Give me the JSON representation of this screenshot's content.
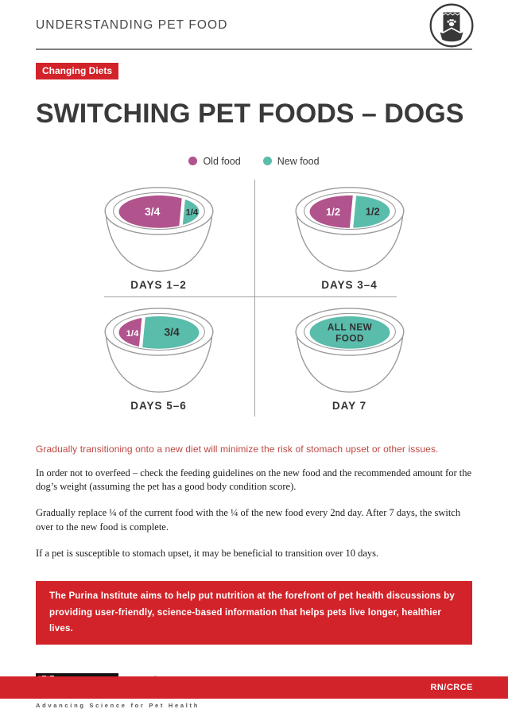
{
  "header": {
    "title": "UNDERSTANDING PET FOOD",
    "icon": "pet-food-bag-and-bowl"
  },
  "badge": "Changing Diets",
  "title": "SWITCHING PET FOODS – DOGS",
  "legend": {
    "old": {
      "label": "Old food",
      "color": "#b1538d"
    },
    "new": {
      "label": "New food",
      "color": "#5abcab"
    }
  },
  "bowls": [
    {
      "label": "DAYS 1–2",
      "portions": [
        {
          "food": "old",
          "amount": "3/4"
        },
        {
          "food": "new",
          "amount": "1/4"
        }
      ]
    },
    {
      "label": "DAYS 3–4",
      "portions": [
        {
          "food": "old",
          "amount": "1/2"
        },
        {
          "food": "new",
          "amount": "1/2"
        }
      ]
    },
    {
      "label": "DAYS 5–6",
      "portions": [
        {
          "food": "old",
          "amount": "1/4"
        },
        {
          "food": "new",
          "amount": "3/4"
        }
      ]
    },
    {
      "label": "DAY 7",
      "portions": [
        {
          "food": "new",
          "amount": "ALL NEW FOOD"
        }
      ]
    }
  ],
  "highlight": "Gradually transitioning onto a new diet will minimize the risk of stomach upset or other issues.",
  "paragraphs": [
    "In order not to overfeed – check the feeding guidelines on the new food and the recommended amount for the dog’s weight (assuming the pet has a good body condition score).",
    "Gradually replace ¼ of the current food with the ¼ of the new food every 2nd day. After 7 days, the switch over to the new food is complete.",
    "If a pet is susceptible to stomach upset, it may be beneficial to transition over 10 days."
  ],
  "callout": "The Purina Institute aims to help put nutrition at the forefront of pet health discussions by providing user-friendly, science-based information that helps pets live longer, healthier lives.",
  "logo": {
    "brand": "PURINA",
    "name": "Institute",
    "tagline": "Advancing Science for Pet Health"
  },
  "footer": {
    "code": "RN/CRCE"
  },
  "colors": {
    "brand_red": "#d2232a",
    "highlight_red": "#bd4742",
    "ink": "#3a3a3a",
    "bowl_outline": "#9a9a9a"
  }
}
